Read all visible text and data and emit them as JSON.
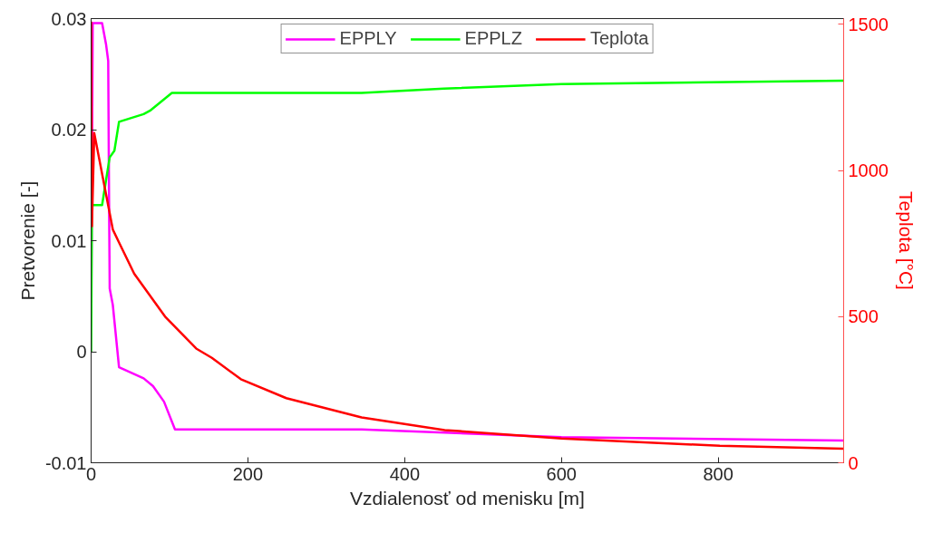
{
  "chart_data": {
    "type": "line",
    "xlabel": "Vzdialenosť od menisku [m]",
    "ylabel": "Pretvorenie [-]",
    "y2label": "Teplota [°C]",
    "xlim": [
      0,
      960
    ],
    "xticks": [
      0,
      200,
      400,
      600,
      800
    ],
    "ylim": [
      -0.01,
      0.03
    ],
    "yticks": [
      -0.01,
      0,
      0.01,
      0.02,
      0.03
    ],
    "y2lim": [
      0,
      1520
    ],
    "y2ticks": [
      0,
      500,
      1000,
      1500
    ],
    "grid": false,
    "legend": "top",
    "marker": "none",
    "line_style": "solid",
    "series": [
      {
        "name": "EPPLY",
        "color": "#ff00ff",
        "x": [
          0,
          2,
          14,
          19,
          21.8,
          22.9,
          23.7,
          27.7,
          35.6,
          67,
          79,
          93,
          107,
          345,
          600,
          960
        ],
        "values": [
          0,
          0.0296,
          0.0296,
          0.0277,
          0.0262,
          0.0135,
          0.0057,
          0.0042,
          -0.0014,
          -0.0024,
          -0.0031,
          -0.0045,
          -0.007,
          -0.007,
          -0.0077,
          -0.008
        ]
      },
      {
        "name": "EPPLZ",
        "color": "#00ff00",
        "x": [
          0,
          1,
          14,
          19.8,
          23.7,
          29.7,
          35.6,
          67,
          75,
          103,
          345,
          450,
          600,
          960
        ],
        "values": [
          0,
          0.0132,
          0.0132,
          0.0158,
          0.0175,
          0.0181,
          0.0207,
          0.0214,
          0.0217,
          0.0233,
          0.0233,
          0.0237,
          0.0241,
          0.0244
        ]
      },
      {
        "name": "Teplota",
        "color": "#ff0000",
        "axis": "y2",
        "x": [
          0,
          1,
          4,
          27.7,
          35.6,
          55,
          95,
          134,
          154,
          191,
          249,
          345,
          451,
          600,
          802,
          960
        ],
        "values": [
          1510,
          810,
          1128,
          798,
          754,
          647,
          498,
          391,
          359,
          286,
          221,
          155,
          112,
          83,
          58,
          48
        ]
      }
    ]
  }
}
